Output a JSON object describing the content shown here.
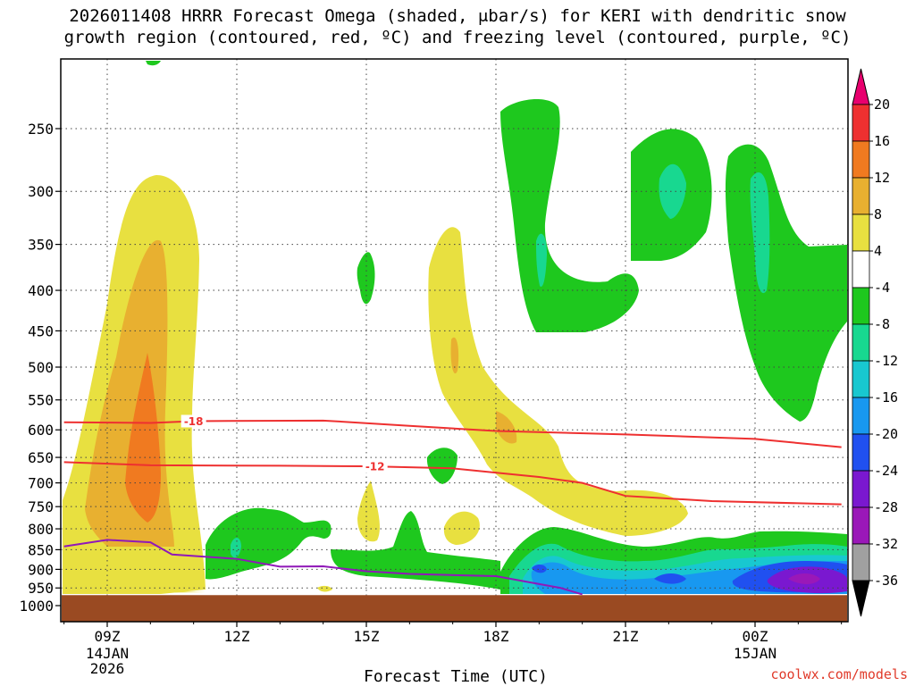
{
  "title_line1": "2026011408 HRRR Forecast Omega (shaded, μbar/s) for KERI with dendritic snow",
  "title_line2": "growth region (contoured, red, ºC) and freezing level (contoured, purple, ºC)",
  "credit": "coolwx.com/models",
  "chart_data": {
    "type": "heatmap",
    "xlabel": "Forecast Time (UTC)",
    "ylabel": "",
    "x_ticks": [
      {
        "label": "09Z",
        "sub": [
          "14JAN",
          "2026"
        ],
        "hour": 9
      },
      {
        "label": "12Z",
        "sub": [],
        "hour": 12
      },
      {
        "label": "15Z",
        "sub": [],
        "hour": 15
      },
      {
        "label": "18Z",
        "sub": [],
        "hour": 18
      },
      {
        "label": "21Z",
        "sub": [],
        "hour": 21
      },
      {
        "label": "00Z",
        "sub": [
          "15JAN"
        ],
        "hour": 24
      }
    ],
    "xlim": [
      8,
      26
    ],
    "y_ticks": [
      250,
      300,
      350,
      400,
      450,
      500,
      550,
      600,
      650,
      700,
      750,
      800,
      850,
      900,
      950,
      1000
    ],
    "ylim_hPa": [
      200,
      1000
    ],
    "grid": true,
    "colorbar": {
      "levels": [
        20,
        16,
        12,
        8,
        4,
        -4,
        -8,
        -12,
        -16,
        -20,
        -24,
        -28,
        -32,
        -36
      ],
      "colors": [
        "#e8006e",
        "#ee3030",
        "#f07a20",
        "#e8b030",
        "#e8e040",
        "#ffffff",
        "#1ec81e",
        "#18d890",
        "#18c8d0",
        "#1898f0",
        "#2050f0",
        "#7a18d0",
        "#9a18b8",
        "#a0a0a0",
        "#000000"
      ]
    },
    "contours": [
      {
        "label": "-18",
        "color": "#ee3030",
        "points": [
          [
            8,
            587
          ],
          [
            10,
            588
          ],
          [
            11,
            585
          ],
          [
            14,
            584
          ],
          [
            16,
            593
          ],
          [
            18,
            602
          ],
          [
            21,
            608
          ],
          [
            24,
            616
          ],
          [
            26,
            631
          ]
        ]
      },
      {
        "label": "-12",
        "color": "#ee3030",
        "points": [
          [
            8,
            659
          ],
          [
            10,
            665
          ],
          [
            13,
            666
          ],
          [
            15,
            667
          ],
          [
            17,
            671
          ],
          [
            19,
            688
          ],
          [
            20,
            700
          ],
          [
            21,
            727
          ],
          [
            23,
            738
          ],
          [
            26,
            745
          ]
        ]
      },
      {
        "label": "",
        "color": "#9018b8",
        "points": [
          [
            8,
            842
          ],
          [
            9,
            826
          ],
          [
            10,
            832
          ],
          [
            10.5,
            862
          ],
          [
            12,
            873
          ],
          [
            13,
            893
          ],
          [
            14,
            892
          ],
          [
            15,
            905
          ],
          [
            16,
            912
          ],
          [
            18,
            918
          ],
          [
            19.5,
            950
          ],
          [
            20,
            968
          ]
        ]
      }
    ],
    "ground_hPa": 970
  }
}
